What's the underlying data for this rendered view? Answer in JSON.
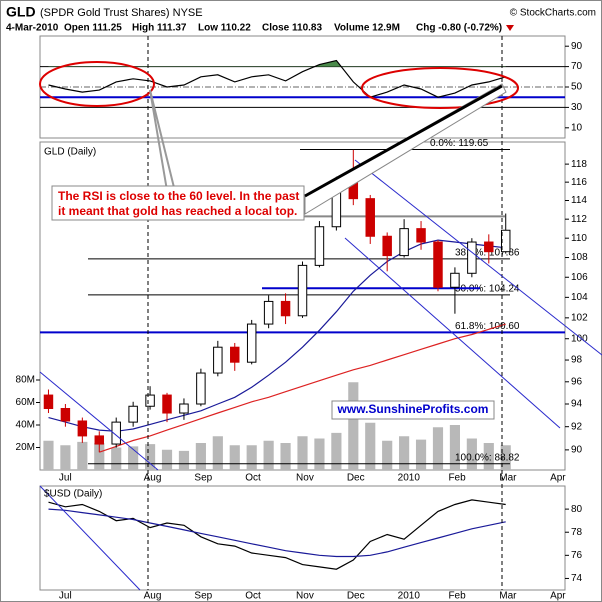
{
  "header": {
    "symbol": "GLD",
    "name": "(SPDR Gold Trust Shares) NYSE",
    "copyright": "© StockCharts.com",
    "date": "4-Mar-2010",
    "quote": [
      "Open 111.25",
      "High 111.37",
      "Low 110.22",
      "Close 110.83",
      "Volume 12.9M",
      "Chg -0.80 (-0.72%)"
    ]
  },
  "chart_data": [
    {
      "type": "line",
      "ylim": [
        0,
        100
      ],
      "yticks": [
        10,
        30,
        50,
        70,
        90
      ],
      "series": [
        {
          "color": "#000000",
          "values": [
            52,
            48,
            45,
            47,
            55,
            58,
            56,
            50,
            52,
            60,
            62,
            55,
            60,
            62,
            56,
            65,
            72,
            76,
            55,
            40,
            45,
            52,
            48,
            40,
            44,
            52,
            55,
            60
          ]
        }
      ],
      "hlines": [
        {
          "value": 70,
          "color": "#000000"
        },
        {
          "value": 50,
          "color": "#666666",
          "dash": true
        },
        {
          "value": 30,
          "color": "#000000"
        },
        {
          "value": 40,
          "color": "#0000cc"
        }
      ],
      "overbought": 70,
      "overbought_color": "#4a8a4a"
    },
    {
      "type": "candlestick",
      "title": "GLD (Daily)",
      "log": true,
      "ylim": [
        88.3,
        120.5
      ],
      "yticks": [
        90,
        92,
        94,
        96,
        98,
        100,
        102,
        104,
        106,
        108,
        110,
        112,
        114,
        116,
        118
      ],
      "categories": [
        null,
        "Jul",
        null,
        null,
        null,
        null,
        "Aug",
        null,
        null,
        "Sep",
        null,
        null,
        "Oct",
        null,
        null,
        "Nov",
        null,
        null,
        "Dec",
        null,
        null,
        "2010",
        null,
        null,
        "Feb",
        null,
        null,
        "Mar",
        null,
        null,
        "Apr"
      ],
      "open": [
        94.8,
        93.6,
        92.5,
        91.2,
        90.5,
        92.4,
        93.8,
        94.8,
        93.2,
        94.0,
        96.8,
        99.2,
        97.8,
        101.4,
        103.6,
        102.2,
        107.2,
        111.2,
        116.0,
        114.2,
        110.2,
        108.2,
        111.0,
        109.6,
        105.0,
        106.4,
        109.6,
        108.6,
        null,
        null,
        null
      ],
      "high": [
        95.3,
        94.0,
        92.8,
        91.6,
        92.8,
        94.2,
        95.6,
        95.0,
        94.5,
        97.2,
        99.8,
        99.6,
        101.8,
        104.2,
        104.4,
        107.6,
        111.8,
        116.6,
        119.6,
        114.6,
        110.6,
        112.0,
        111.8,
        109.8,
        107.0,
        110.0,
        110.4,
        112.6,
        null,
        null,
        null
      ],
      "low": [
        93.2,
        92.0,
        90.6,
        89.8,
        90.2,
        92.0,
        93.5,
        92.4,
        92.6,
        93.8,
        96.5,
        97.0,
        97.6,
        101.0,
        101.4,
        102.0,
        107.0,
        110.8,
        113.5,
        109.4,
        106.6,
        108.0,
        108.8,
        104.6,
        102.4,
        106.0,
        107.4,
        108.4,
        null,
        null,
        null
      ],
      "close": [
        93.6,
        92.5,
        91.2,
        90.5,
        92.4,
        93.8,
        94.8,
        93.2,
        94.0,
        96.8,
        99.2,
        97.8,
        101.4,
        103.6,
        102.2,
        107.2,
        111.2,
        116.0,
        114.2,
        110.2,
        108.2,
        111.0,
        109.6,
        105.0,
        106.4,
        109.6,
        108.6,
        110.83,
        null,
        null,
        null
      ],
      "up_color": "#000000",
      "down_color": "#cc0000",
      "volume": {
        "color": "#b8b8b8",
        "ylim": [
          0,
          80
        ],
        "yticks": [
          {
            "value": 20,
            "label": "20M"
          },
          {
            "value": 40,
            "label": "40M"
          },
          {
            "value": 60,
            "label": "60M"
          },
          {
            "value": 80,
            "label": "80M"
          }
        ],
        "values": [
          26,
          22,
          25,
          24,
          20,
          21,
          23,
          18,
          17,
          24,
          30,
          22,
          22,
          26,
          24,
          30,
          28,
          33,
          78,
          42,
          26,
          30,
          27,
          38,
          40,
          28,
          24,
          22,
          null,
          null,
          null
        ]
      },
      "series": [
        {
          "color": "#1a1a99",
          "values": [
            92.8,
            92.4,
            92.0,
            91.7,
            91.6,
            91.8,
            92.2,
            92.6,
            93.0,
            93.4,
            94.0,
            94.6,
            95.5,
            96.6,
            97.8,
            99.2,
            100.8,
            102.6,
            104.6,
            106.2,
            107.6,
            108.6,
            109.4,
            109.8,
            109.6,
            109.4,
            109.2,
            109.0,
            null,
            null,
            null
          ]
        },
        {
          "color": "#dd2222",
          "values": [
            null,
            null,
            null,
            89.8,
            90.3,
            90.8,
            91.2,
            91.7,
            92.2,
            92.7,
            93.2,
            93.7,
            94.2,
            94.6,
            95.1,
            95.6,
            96.1,
            96.6,
            97.1,
            97.5,
            98.0,
            98.5,
            99.0,
            99.5,
            100.0,
            100.4,
            100.9,
            101.4,
            null,
            null,
            null
          ]
        }
      ],
      "levels": [
        {
          "value": 119.65,
          "label": "0.0%: 119.65",
          "color": "#000000"
        },
        {
          "value": 107.86,
          "label": "38.2%: 107.86",
          "color": "#000000"
        },
        {
          "value": 104.24,
          "label": "50.0%: 104.24",
          "color": "#000000"
        },
        {
          "value": 100.6,
          "label": "61.8%: 100.60",
          "color": "#0000cc"
        },
        {
          "value": 88.82,
          "label": "100.0%: 88.82",
          "color": "#000000"
        }
      ],
      "lines": [
        {
          "value": 112.3,
          "color": "#888888"
        },
        {
          "value": 104.9,
          "color": "#0000cc"
        }
      ],
      "note_lines": [
        "The RSI is close to the 60 level. In the past",
        "it meant that gold has reached a local top."
      ],
      "watermark": "www.SunshineProfits.com"
    },
    {
      "type": "line",
      "title": "$USD (Daily)",
      "ylim": [
        73,
        82
      ],
      "yticks": [
        74,
        76,
        78,
        80
      ],
      "categories": [
        null,
        "Jul",
        null,
        null,
        null,
        null,
        "Aug",
        null,
        null,
        "Sep",
        null,
        null,
        "Oct",
        null,
        null,
        "Nov",
        null,
        null,
        "Dec",
        null,
        null,
        "2010",
        null,
        null,
        "Feb",
        null,
        null,
        "Mar",
        null,
        null,
        "Apr"
      ],
      "series": [
        {
          "color": "#000000",
          "values": [
            80.6,
            80.2,
            80.4,
            79.8,
            79.0,
            79.2,
            78.4,
            78.8,
            78.6,
            77.6,
            77.0,
            76.8,
            76.2,
            76.0,
            75.8,
            75.2,
            75.0,
            74.8,
            75.6,
            77.2,
            77.8,
            77.4,
            78.6,
            79.8,
            80.4,
            80.8,
            80.6,
            80.4,
            null,
            null,
            null
          ]
        },
        {
          "color": "#1a1a99",
          "values": [
            80.0,
            79.9,
            79.7,
            79.5,
            79.3,
            79.1,
            78.8,
            78.5,
            78.2,
            77.9,
            77.6,
            77.3,
            77.0,
            76.7,
            76.4,
            76.2,
            76.0,
            75.9,
            75.9,
            76.0,
            76.3,
            76.7,
            77.1,
            77.5,
            77.9,
            78.3,
            78.6,
            78.9,
            null,
            null,
            null
          ]
        }
      ]
    }
  ]
}
